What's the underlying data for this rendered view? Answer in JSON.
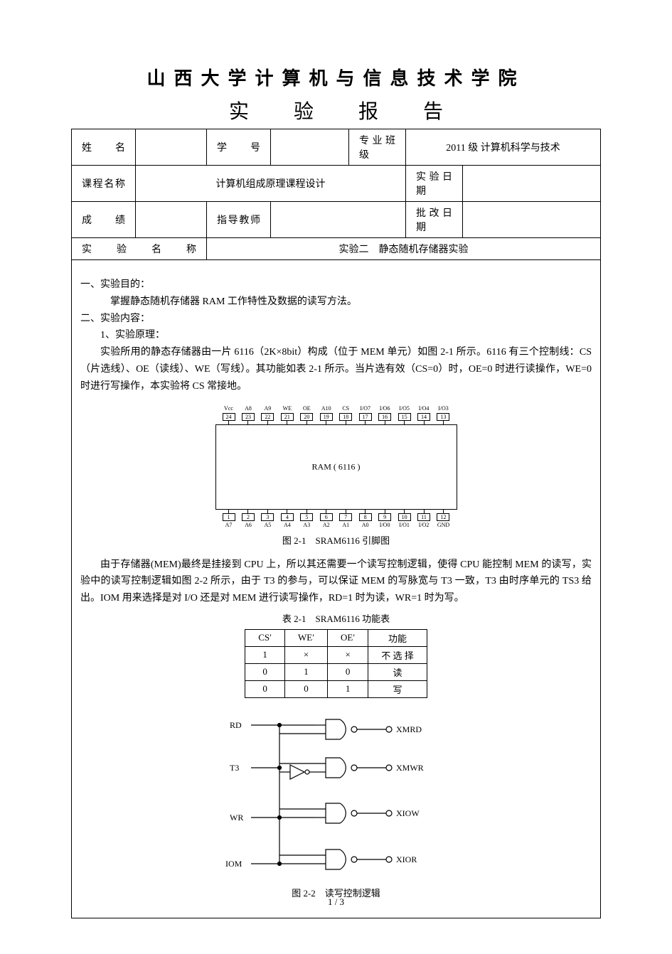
{
  "header": {
    "institution": "山西大学计算机与信息技术学院",
    "doc_title_chars": [
      "实",
      "验",
      "报",
      "告"
    ]
  },
  "info": {
    "name_label": "姓　　名",
    "name_value": "",
    "id_label": "学　　号",
    "id_value": "",
    "class_label": "专业班级",
    "class_value": "2011 级 计算机科学与技术",
    "course_label": "课程名称",
    "course_value": "计算机组成原理课程设计",
    "date_label": "实验日期",
    "date_value": "",
    "grade_label": "成　　绩",
    "grade_value": "",
    "teacher_label": "指导教师",
    "teacher_value": "",
    "review_label": "批改日期",
    "review_value": "",
    "exp_name_label": "实 验 名 称",
    "exp_name_value": "实验二　静态随机存储器实验"
  },
  "body": {
    "s1_title": "一、实验目的：",
    "s1_text": "掌握静态随机存储器 RAM 工作特性及数据的读写方法。",
    "s2_title": "二、实验内容：",
    "s2_sub1": "1、实验原理：",
    "para1": "实验所用的静态存储器由一片 6116（2K×8bit）构成（位于 MEM 单元）如图 2-1 所示。6116 有三个控制线：CS（片选线）、OE（读线）、WE（写线）。其功能如表 2-1 所示。当片选有效（CS=0）时，OE=0 时进行读操作，WE=0 时进行写操作，本实验将 CS 常接地。",
    "fig1_caption": "图 2-1　SRAM6116 引脚图",
    "para2": "由于存储器(MEM)最终是挂接到 CPU 上，所以其还需要一个读写控制逻辑，使得 CPU 能控制 MEM 的读写，实验中的读写控制逻辑如图 2-2 所示，由于 T3 的参与，可以保证 MEM 的写脉宽与 T3 一致，T3 由时序单元的 TS3 给出。IOM 用来选择是对 I/O 还是对 MEM 进行读写操作，RD=1 时为读，WR=1 时为写。",
    "table1_caption": "表 2-1　SRAM6116 功能表",
    "fig2_caption": "图 2-2　读写控制逻辑"
  },
  "chip": {
    "label": "RAM ( 6116 )",
    "top_pins": [
      {
        "num": "24",
        "name": "Vcc"
      },
      {
        "num": "23",
        "name": "A8"
      },
      {
        "num": "22",
        "name": "A9"
      },
      {
        "num": "21",
        "name": "WE"
      },
      {
        "num": "20",
        "name": "OE"
      },
      {
        "num": "19",
        "name": "A10"
      },
      {
        "num": "18",
        "name": "CS"
      },
      {
        "num": "17",
        "name": "I/O7"
      },
      {
        "num": "16",
        "name": "I/O6"
      },
      {
        "num": "15",
        "name": "I/O5"
      },
      {
        "num": "14",
        "name": "I/O4"
      },
      {
        "num": "13",
        "name": "I/O3"
      }
    ],
    "bottom_pins": [
      {
        "num": "1",
        "name": "A7"
      },
      {
        "num": "2",
        "name": "A6"
      },
      {
        "num": "3",
        "name": "A5"
      },
      {
        "num": "4",
        "name": "A4"
      },
      {
        "num": "5",
        "name": "A3"
      },
      {
        "num": "6",
        "name": "A2"
      },
      {
        "num": "7",
        "name": "A1"
      },
      {
        "num": "8",
        "name": "A0"
      },
      {
        "num": "9",
        "name": "I/O0"
      },
      {
        "num": "10",
        "name": "I/O1"
      },
      {
        "num": "11",
        "name": "I/O2"
      },
      {
        "num": "12",
        "name": "GND"
      }
    ]
  },
  "func_table": {
    "headers": [
      "CS′",
      "WE′",
      "OE′",
      "功能"
    ],
    "rows": [
      [
        "1",
        "×",
        "×",
        "不 选 择"
      ],
      [
        "0",
        "1",
        "0",
        "读"
      ],
      [
        "0",
        "0",
        "1",
        "写"
      ]
    ]
  },
  "logic": {
    "inputs": [
      "RD",
      "T3",
      "WR",
      "IOM"
    ],
    "outputs": [
      "XMRD",
      "XMWR",
      "XIOW",
      "XIOR"
    ],
    "colors": {
      "line": "#000000",
      "bg": "#ffffff"
    }
  },
  "page_num": "1 / 3"
}
